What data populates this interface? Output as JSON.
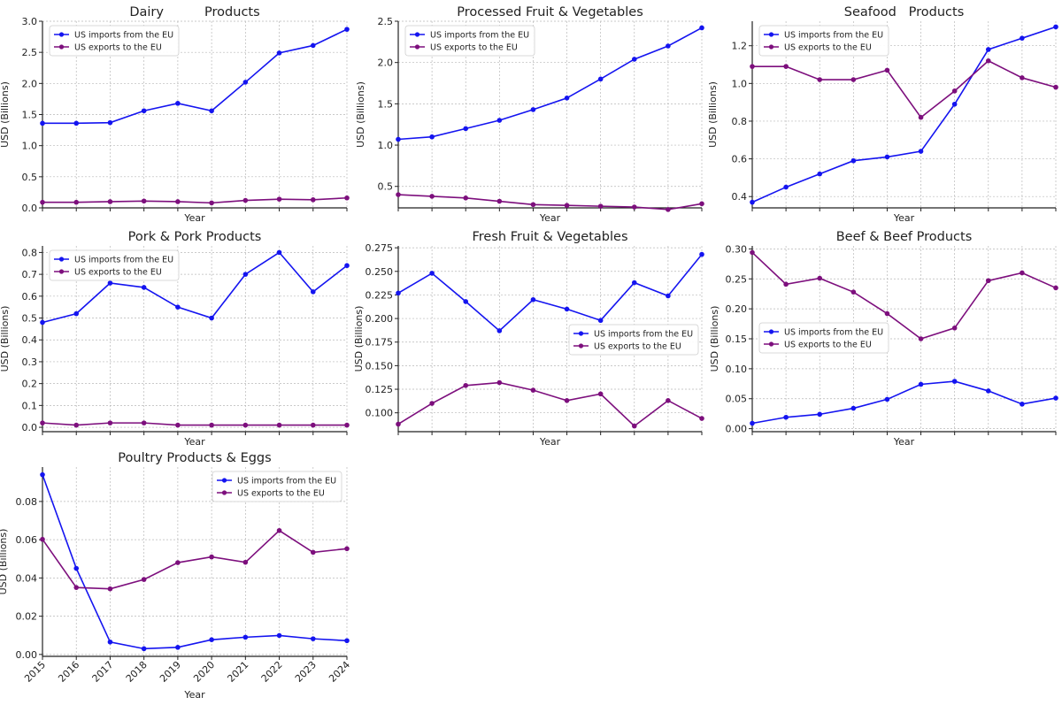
{
  "colors": {
    "imports": "#1414f0",
    "exports": "#7d0f7d",
    "grid": "#b8b8b8",
    "axis": "#222222"
  },
  "chart_data": [
    {
      "type": "line",
      "title": "Dairy          Products",
      "xlabel": "Year",
      "ylabel": "USD (Billions)",
      "x": [
        2015,
        2016,
        2017,
        2018,
        2019,
        2020,
        2021,
        2022,
        2023,
        2024
      ],
      "ylim": [
        0,
        3.0
      ],
      "yticks": [
        0.0,
        0.5,
        1.0,
        1.5,
        2.0,
        2.5,
        3.0
      ],
      "ytick_labels": [
        "0.0",
        "0.5",
        "1.0",
        "1.5",
        "2.0",
        "2.5",
        "3.0"
      ],
      "grid": true,
      "legend": "upper-left",
      "series": [
        {
          "name": "US imports from the EU",
          "values": [
            1.36,
            1.36,
            1.37,
            1.56,
            1.68,
            1.56,
            2.02,
            2.49,
            2.61,
            2.87
          ]
        },
        {
          "name": "US exports to the EU",
          "values": [
            0.09,
            0.09,
            0.1,
            0.11,
            0.1,
            0.08,
            0.12,
            0.14,
            0.13,
            0.16
          ]
        }
      ]
    },
    {
      "type": "line",
      "title": "Processed Fruit & Vegetables",
      "xlabel": "Year",
      "ylabel": "USD (Billions)",
      "x": [
        2015,
        2016,
        2017,
        2018,
        2019,
        2020,
        2021,
        2022,
        2023,
        2024
      ],
      "ylim": [
        0.24,
        2.5
      ],
      "yticks": [
        0.5,
        1.0,
        1.5,
        2.0,
        2.5
      ],
      "ytick_labels": [
        "0.5",
        "1.0",
        "1.5",
        "2.0",
        "2.5"
      ],
      "grid": true,
      "legend": "upper-left",
      "series": [
        {
          "name": "US imports from the EU",
          "values": [
            1.07,
            1.1,
            1.2,
            1.3,
            1.43,
            1.57,
            1.8,
            2.04,
            2.2,
            2.42
          ]
        },
        {
          "name": "US exports to the EU",
          "values": [
            0.4,
            0.38,
            0.36,
            0.32,
            0.28,
            0.27,
            0.26,
            0.25,
            0.22,
            0.29
          ]
        }
      ]
    },
    {
      "type": "line",
      "title": "Seafood   Products",
      "xlabel": "Year",
      "ylabel": "USD (Billions)",
      "x": [
        2015,
        2016,
        2017,
        2018,
        2019,
        2020,
        2021,
        2022,
        2023,
        2024
      ],
      "ylim": [
        0.34,
        1.33
      ],
      "yticks": [
        0.4,
        0.6,
        0.8,
        1.0,
        1.2
      ],
      "ytick_labels": [
        "0.4",
        "0.6",
        "0.8",
        "1.0",
        "1.2"
      ],
      "grid": true,
      "legend": "upper-left",
      "series": [
        {
          "name": "US imports from the EU",
          "values": [
            0.37,
            0.45,
            0.52,
            0.59,
            0.61,
            0.64,
            0.89,
            1.18,
            1.24,
            1.3
          ]
        },
        {
          "name": "US exports to the EU",
          "values": [
            1.09,
            1.09,
            1.02,
            1.02,
            1.07,
            0.82,
            0.96,
            1.12,
            1.03,
            0.98
          ]
        }
      ]
    },
    {
      "type": "line",
      "title": "Pork & Pork Products",
      "xlabel": "Year",
      "ylabel": "USD (Billions)",
      "x": [
        2015,
        2016,
        2017,
        2018,
        2019,
        2020,
        2021,
        2022,
        2023,
        2024
      ],
      "ylim": [
        -0.02,
        0.83
      ],
      "yticks": [
        0.0,
        0.1,
        0.2,
        0.3,
        0.4,
        0.5,
        0.6,
        0.7,
        0.8
      ],
      "ytick_labels": [
        "0.0",
        "0.1",
        "0.2",
        "0.3",
        "0.4",
        "0.5",
        "0.6",
        "0.7",
        "0.8"
      ],
      "grid": true,
      "legend": "upper-left",
      "series": [
        {
          "name": "US imports from the EU",
          "values": [
            0.48,
            0.52,
            0.66,
            0.64,
            0.55,
            0.5,
            0.7,
            0.8,
            0.62,
            0.74
          ]
        },
        {
          "name": "US exports to the EU",
          "values": [
            0.02,
            0.01,
            0.02,
            0.02,
            0.01,
            0.01,
            0.01,
            0.01,
            0.01,
            0.01
          ]
        }
      ]
    },
    {
      "type": "line",
      "title": "Fresh Fruit & Vegetables",
      "xlabel": "Year",
      "ylabel": "USD (Billions)",
      "x": [
        2015,
        2016,
        2017,
        2018,
        2019,
        2020,
        2021,
        2022,
        2023,
        2024
      ],
      "ylim": [
        0.08,
        0.277
      ],
      "yticks": [
        0.1,
        0.125,
        0.15,
        0.175,
        0.2,
        0.225,
        0.25,
        0.275
      ],
      "ytick_labels": [
        "0.100",
        "0.125",
        "0.150",
        "0.175",
        "0.200",
        "0.225",
        "0.250",
        "0.275"
      ],
      "grid": true,
      "legend": "center-right",
      "series": [
        {
          "name": "US imports from the EU",
          "values": [
            0.227,
            0.248,
            0.218,
            0.187,
            0.22,
            0.21,
            0.198,
            0.238,
            0.224,
            0.268
          ]
        },
        {
          "name": "US exports to the EU",
          "values": [
            0.088,
            0.11,
            0.129,
            0.132,
            0.124,
            0.113,
            0.12,
            0.086,
            0.113,
            0.094
          ]
        }
      ]
    },
    {
      "type": "line",
      "title": "Beef & Beef Products",
      "xlabel": "Year",
      "ylabel": "USD (Billions)",
      "x": [
        2015,
        2016,
        2017,
        2018,
        2019,
        2020,
        2021,
        2022,
        2023,
        2024
      ],
      "ylim": [
        -0.005,
        0.305
      ],
      "yticks": [
        0.0,
        0.05,
        0.1,
        0.15,
        0.2,
        0.25,
        0.3
      ],
      "ytick_labels": [
        "0.00",
        "0.05",
        "0.10",
        "0.15",
        "0.20",
        "0.25",
        "0.30"
      ],
      "grid": true,
      "legend": "center-left",
      "series": [
        {
          "name": "US imports from the EU",
          "values": [
            0.009,
            0.019,
            0.024,
            0.034,
            0.049,
            0.074,
            0.079,
            0.063,
            0.041,
            0.051
          ]
        },
        {
          "name": "US exports to the EU",
          "values": [
            0.294,
            0.241,
            0.251,
            0.228,
            0.192,
            0.15,
            0.168,
            0.247,
            0.26,
            0.235
          ]
        }
      ]
    },
    {
      "type": "line",
      "title": "Poultry Products & Eggs",
      "xlabel": "Year",
      "ylabel": "USD (Billions)",
      "x": [
        2015,
        2016,
        2017,
        2018,
        2019,
        2020,
        2021,
        2022,
        2023,
        2024
      ],
      "xtick_labels": [
        "2015",
        "2016",
        "2017",
        "2018",
        "2019",
        "2020",
        "2021",
        "2022",
        "2023",
        "2024"
      ],
      "ylim": [
        -0.001,
        0.098
      ],
      "yticks": [
        0.0,
        0.02,
        0.04,
        0.06,
        0.08
      ],
      "ytick_labels": [
        "0.00",
        "0.02",
        "0.04",
        "0.06",
        "0.08"
      ],
      "grid": true,
      "legend": "upper-right",
      "series": [
        {
          "name": "US imports from the EU",
          "values": [
            0.094,
            0.045,
            0.0065,
            0.003,
            0.0037,
            0.0077,
            0.009,
            0.0099,
            0.0082,
            0.0072
          ]
        },
        {
          "name": "US exports to the EU",
          "values": [
            0.0602,
            0.035,
            0.0343,
            0.0392,
            0.048,
            0.051,
            0.0482,
            0.0648,
            0.0534,
            0.0553
          ]
        }
      ]
    }
  ]
}
